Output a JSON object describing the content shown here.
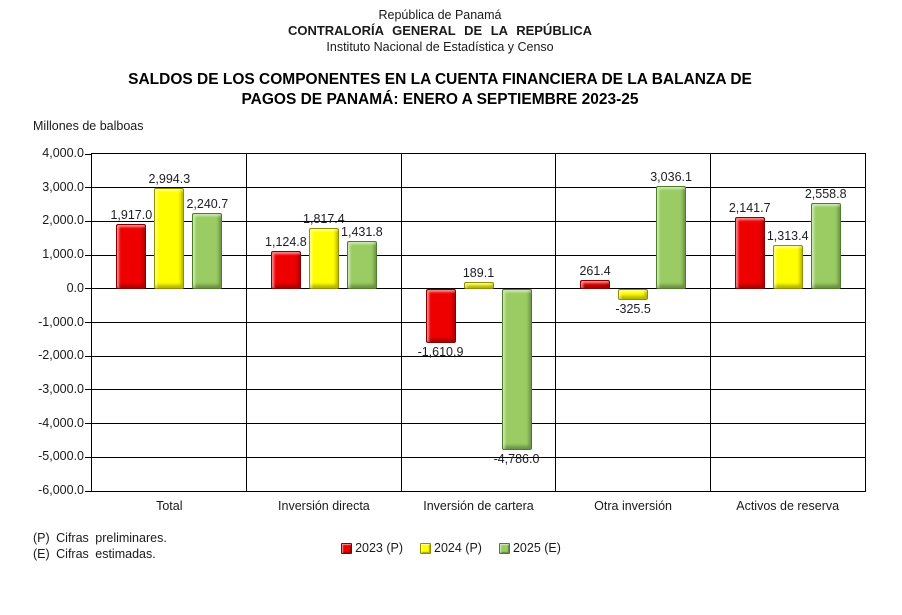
{
  "header": {
    "line1": "República de Panamá",
    "line2": "CONTRALORÍA GENERAL DE LA REPÚBLICA",
    "line3": "Instituto Nacional de Estadística y Censo"
  },
  "title_lines": [
    "SALDOS DE LOS COMPONENTES EN LA CUENTA FINANCIERA DE LA BALANZA DE",
    "PAGOS DE PANAMÁ: ENERO A SEPTIEMBRE 2023-25"
  ],
  "footnotes": [
    "(P) Cifras preliminares.",
    "(E) Cifras estimadas."
  ],
  "chart_data": {
    "type": "bar",
    "title": "SALDOS DE LOS COMPONENTES EN LA CUENTA FINANCIERA DE LA BALANZA DE PAGOS DE PANAMÁ: ENERO A SEPTIEMBRE 2023-25",
    "ylabel": "Millones de balboas",
    "xlabel": "",
    "categories": [
      "Total",
      "Inversión directa",
      "Inversión de cartera",
      "Otra inversión",
      "Activos de reserva"
    ],
    "series": [
      {
        "name": "2023 (P)",
        "color": "#ee0000",
        "border_color": "#860000",
        "values": [
          1917.0,
          1124.8,
          -1610.9,
          261.4,
          2141.7
        ]
      },
      {
        "name": "2024 (P)",
        "color": "#ffff00",
        "border_color": "#8f8f00",
        "values": [
          2994.3,
          1817.4,
          189.1,
          -325.5,
          1313.4
        ]
      },
      {
        "name": "2025 (E)",
        "color": "#9acc63",
        "border_color": "#4e7d28",
        "values": [
          2240.7,
          1431.8,
          -4786.0,
          3036.1,
          2558.8
        ]
      }
    ],
    "ylim": [
      -6000,
      4000
    ],
    "ytick_step": 1000,
    "grid": true,
    "legend_position": "bottom",
    "value_labels": true
  }
}
